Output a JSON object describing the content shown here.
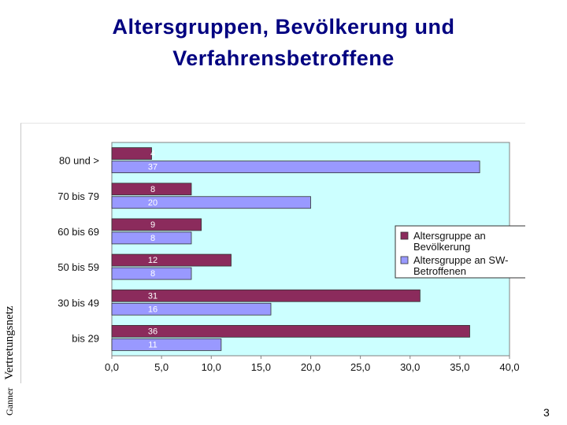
{
  "slide": {
    "title_line1": "Altersgruppen, Bevölkerung und",
    "title_line2": "Verfahrensbetroffene",
    "side_label_part1": "Ganner",
    "side_label_part2": "Vertretungsnetz",
    "page_number": "3"
  },
  "chart_data": {
    "type": "bar",
    "orientation": "horizontal",
    "categories": [
      "80 und >",
      "70 bis 79",
      "60 bis 69",
      "50 bis 59",
      "30 bis 49",
      "bis 29"
    ],
    "series": [
      {
        "name": "Altersgruppe an Bevölkerung",
        "values": [
          4,
          8,
          9,
          12,
          31,
          36
        ],
        "color": "#8b2b5c"
      },
      {
        "name": "Altersgruppe an SW-Betroffenen",
        "values": [
          37,
          20,
          8,
          8,
          16,
          11
        ],
        "color": "#9999ff"
      }
    ],
    "legend_lines": [
      [
        "Altersgruppe an",
        "Bevölkerung"
      ],
      [
        "Altersgruppe an SW-",
        "Betroffenen"
      ]
    ],
    "x_ticks": [
      "0,0",
      "5,0",
      "10,0",
      "15,0",
      "20,0",
      "25,0",
      "30,0",
      "35,0",
      "40,0"
    ],
    "xlim": [
      0,
      40
    ],
    "plot_background": "#ccffff",
    "legend_position": "right",
    "grid": false
  }
}
